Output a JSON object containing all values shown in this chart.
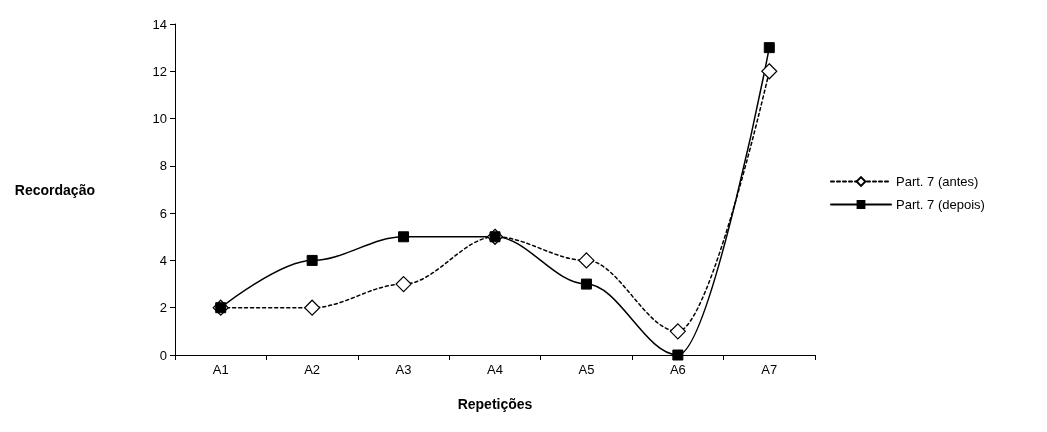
{
  "chart_data": {
    "type": "line",
    "xlabel": "Repetições",
    "ylabel": "Recordação",
    "categories": [
      "A1",
      "A2",
      "A3",
      "A4",
      "A5",
      "A6",
      "A7"
    ],
    "series": [
      {
        "name": "Part. 7 (antes)",
        "color": "#000000",
        "values": [
          2,
          2,
          3,
          5,
          4,
          1,
          12
        ],
        "marker": "diamond",
        "line_style": "dotted"
      },
      {
        "name": "Part. 7 (depois)",
        "color": "#000000",
        "values": [
          2,
          4,
          5,
          5,
          3,
          0,
          13
        ],
        "marker": "square",
        "line_style": "solid"
      }
    ],
    "ylim": [
      0,
      14
    ],
    "yticks": [
      0,
      2,
      4,
      6,
      8,
      10,
      12,
      14
    ],
    "grid": false,
    "legend": "right"
  }
}
